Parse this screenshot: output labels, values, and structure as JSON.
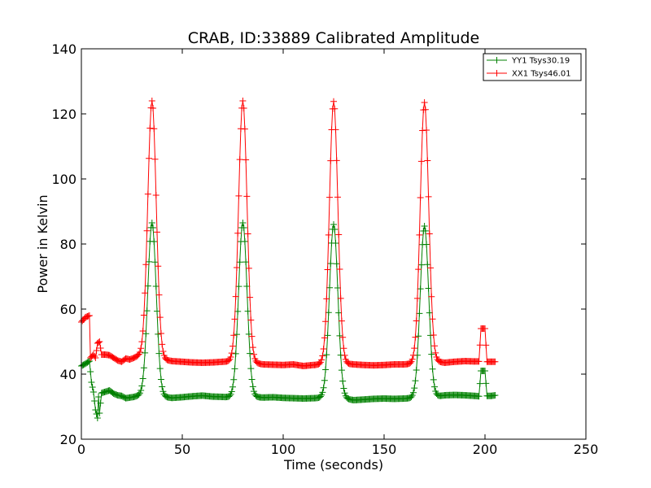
{
  "chart_data": {
    "type": "line",
    "title": "CRAB, ID:33889 Calibrated Amplitude",
    "xlabel": "Time (seconds)",
    "ylabel": "Power in Kelvin",
    "xlim": [
      0,
      250
    ],
    "ylim": [
      20,
      140
    ],
    "x_ticks": [
      0,
      50,
      100,
      150,
      200,
      250
    ],
    "y_ticks": [
      20,
      40,
      60,
      80,
      100,
      120,
      140
    ],
    "grid": false,
    "legend_position": "top-right",
    "marker": "plus",
    "series": [
      {
        "name": "YY1 Tsys30.19",
        "color": "#008000",
        "baseline": [
          [
            0,
            42.5
          ],
          [
            2,
            43.2
          ],
          [
            4,
            44.0
          ],
          [
            5,
            37.5
          ],
          [
            6,
            34.5
          ],
          [
            7,
            29.0
          ],
          [
            8,
            26.5
          ],
          [
            8.5,
            33.0
          ],
          [
            9,
            28.0
          ],
          [
            10,
            34.2
          ],
          [
            12,
            34.6
          ],
          [
            14,
            35.0
          ],
          [
            16,
            34.0
          ],
          [
            18,
            33.5
          ],
          [
            20,
            33.3
          ],
          [
            22,
            32.6
          ],
          [
            24,
            32.8
          ],
          [
            26,
            33.0
          ],
          [
            28,
            33.3
          ],
          [
            40,
            33.0
          ],
          [
            45,
            32.7
          ],
          [
            50,
            32.9
          ],
          [
            55,
            33.2
          ],
          [
            60,
            33.4
          ],
          [
            65,
            33.1
          ],
          [
            70,
            33.0
          ],
          [
            74,
            32.9
          ],
          [
            85,
            33.0
          ],
          [
            90,
            32.8
          ],
          [
            95,
            32.9
          ],
          [
            100,
            32.7
          ],
          [
            105,
            32.6
          ],
          [
            110,
            32.5
          ],
          [
            115,
            32.6
          ],
          [
            119,
            32.7
          ],
          [
            130,
            32.5
          ],
          [
            135,
            32.0
          ],
          [
            140,
            32.2
          ],
          [
            145,
            32.4
          ],
          [
            150,
            32.5
          ],
          [
            155,
            32.4
          ],
          [
            160,
            32.5
          ],
          [
            164,
            32.6
          ],
          [
            175,
            33.0
          ],
          [
            180,
            33.5
          ],
          [
            185,
            33.6
          ],
          [
            190,
            33.5
          ],
          [
            195,
            33.3
          ],
          [
            197,
            33.2
          ],
          [
            198,
            41.0
          ],
          [
            200,
            41.0
          ],
          [
            201,
            33.3
          ],
          [
            203,
            33.3
          ],
          [
            205,
            33.5
          ]
        ],
        "peaks": [
          {
            "center": 35,
            "peak": 86.5,
            "width": 2.1
          },
          {
            "center": 80,
            "peak": 86.5,
            "width": 2.1
          },
          {
            "center": 125,
            "peak": 86.0,
            "width": 2.1
          },
          {
            "center": 170,
            "peak": 85.5,
            "width": 2.1
          }
        ]
      },
      {
        "name": "XX1 Tsys46.01",
        "color": "#ff0000",
        "baseline": [
          [
            0,
            56.0
          ],
          [
            2,
            57.5
          ],
          [
            4,
            58.0
          ],
          [
            4.5,
            45.0
          ],
          [
            6,
            46.0
          ],
          [
            7,
            45.0
          ],
          [
            8,
            49.5
          ],
          [
            9,
            50.0
          ],
          [
            10,
            46.0
          ],
          [
            12,
            46.0
          ],
          [
            14,
            45.8
          ],
          [
            16,
            45.0
          ],
          [
            18,
            44.2
          ],
          [
            20,
            43.8
          ],
          [
            22,
            44.8
          ],
          [
            24,
            44.5
          ],
          [
            26,
            45.0
          ],
          [
            28,
            45.5
          ],
          [
            40,
            44.5
          ],
          [
            45,
            44.0
          ],
          [
            50,
            43.8
          ],
          [
            55,
            43.6
          ],
          [
            60,
            43.5
          ],
          [
            65,
            43.6
          ],
          [
            70,
            43.8
          ],
          [
            74,
            43.9
          ],
          [
            85,
            43.5
          ],
          [
            90,
            43.0
          ],
          [
            95,
            42.9
          ],
          [
            100,
            42.8
          ],
          [
            105,
            43.0
          ],
          [
            110,
            42.5
          ],
          [
            115,
            42.8
          ],
          [
            119,
            43.0
          ],
          [
            130,
            43.2
          ],
          [
            135,
            43.0
          ],
          [
            140,
            42.8
          ],
          [
            145,
            42.7
          ],
          [
            150,
            42.8
          ],
          [
            155,
            43.0
          ],
          [
            160,
            43.0
          ],
          [
            164,
            43.2
          ],
          [
            175,
            44.0
          ],
          [
            180,
            43.5
          ],
          [
            185,
            43.8
          ],
          [
            190,
            44.0
          ],
          [
            195,
            43.9
          ],
          [
            197,
            43.9
          ],
          [
            198,
            54.0
          ],
          [
            200,
            54.0
          ],
          [
            201,
            43.8
          ],
          [
            203,
            43.8
          ],
          [
            205,
            43.8
          ]
        ],
        "peaks": [
          {
            "center": 35,
            "peak": 124.0,
            "width": 2.1
          },
          {
            "center": 80,
            "peak": 124.0,
            "width": 2.1
          },
          {
            "center": 125,
            "peak": 123.8,
            "width": 2.1
          },
          {
            "center": 170,
            "peak": 123.5,
            "width": 2.1
          }
        ]
      }
    ]
  }
}
